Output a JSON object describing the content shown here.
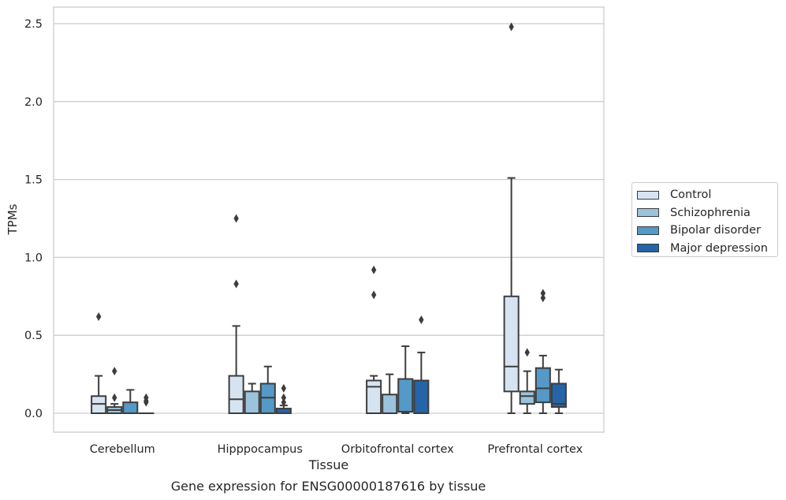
{
  "caption": "Gene expression for ENSG00000187616 by tissue",
  "chart_data": {
    "type": "box",
    "xlabel": "Tissue",
    "ylabel": "TPMs",
    "ylim": [
      -0.12,
      2.62
    ],
    "yticks": [
      "0.0",
      "0.5",
      "1.0",
      "1.5",
      "2.0",
      "2.5"
    ],
    "grid": "horizontal",
    "legend_position": "right",
    "categories": [
      "Cerebellum",
      "Hipppocampus",
      "Orbitofrontal cortex",
      "Prefrontal cortex"
    ],
    "series": [
      {
        "name": "Control",
        "color": "#d6e4f2",
        "boxes": [
          {
            "whislo": 0.0,
            "q1": 0.0,
            "med": 0.06,
            "q3": 0.11,
            "whishi": 0.24,
            "fliers": [
              0.62
            ]
          },
          {
            "whislo": 0.0,
            "q1": 0.0,
            "med": 0.09,
            "q3": 0.24,
            "whishi": 0.56,
            "fliers": [
              0.83,
              1.25
            ]
          },
          {
            "whislo": 0.0,
            "q1": 0.0,
            "med": 0.17,
            "q3": 0.21,
            "whishi": 0.24,
            "fliers": [
              0.76,
              0.92
            ]
          },
          {
            "whislo": 0.0,
            "q1": 0.14,
            "med": 0.3,
            "q3": 0.75,
            "whishi": 1.51,
            "fliers": [
              2.48
            ]
          }
        ]
      },
      {
        "name": "Schizophrenia",
        "color": "#9cc3dc",
        "boxes": [
          {
            "whislo": 0.0,
            "q1": 0.0,
            "med": 0.02,
            "q3": 0.04,
            "whishi": 0.06,
            "fliers": [
              0.1,
              0.27
            ]
          },
          {
            "whislo": 0.0,
            "q1": 0.0,
            "med": 0.0,
            "q3": 0.14,
            "whishi": 0.19,
            "fliers": []
          },
          {
            "whislo": 0.0,
            "q1": 0.0,
            "med": 0.0,
            "q3": 0.12,
            "whishi": 0.25,
            "fliers": []
          },
          {
            "whislo": 0.0,
            "q1": 0.06,
            "med": 0.11,
            "q3": 0.14,
            "whishi": 0.27,
            "fliers": [
              0.39
            ]
          }
        ]
      },
      {
        "name": "Bipolar disorder",
        "color": "#5499c7",
        "boxes": [
          {
            "whislo": 0.0,
            "q1": 0.0,
            "med": 0.0,
            "q3": 0.07,
            "whishi": 0.15,
            "fliers": []
          },
          {
            "whislo": 0.0,
            "q1": 0.0,
            "med": 0.1,
            "q3": 0.19,
            "whishi": 0.3,
            "fliers": []
          },
          {
            "whislo": 0.0,
            "q1": 0.01,
            "med": 0.01,
            "q3": 0.22,
            "whishi": 0.43,
            "fliers": []
          },
          {
            "whislo": 0.0,
            "q1": 0.07,
            "med": 0.16,
            "q3": 0.29,
            "whishi": 0.37,
            "fliers": [
              0.74,
              0.77
            ]
          }
        ]
      },
      {
        "name": "Major depression",
        "color": "#2564a6",
        "boxes": [
          {
            "whislo": 0.0,
            "q1": 0.0,
            "med": 0.0,
            "q3": 0.0,
            "whishi": 0.0,
            "fliers": [
              0.07,
              0.08,
              0.1
            ]
          },
          {
            "whislo": 0.0,
            "q1": 0.0,
            "med": 0.0,
            "q3": 0.03,
            "whishi": 0.05,
            "fliers": [
              0.07,
              0.1,
              0.16
            ]
          },
          {
            "whislo": 0.0,
            "q1": 0.0,
            "med": 0.0,
            "q3": 0.21,
            "whishi": 0.39,
            "fliers": [
              0.6
            ]
          },
          {
            "whislo": 0.0,
            "q1": 0.04,
            "med": 0.06,
            "q3": 0.19,
            "whishi": 0.28,
            "fliers": []
          }
        ]
      }
    ]
  }
}
